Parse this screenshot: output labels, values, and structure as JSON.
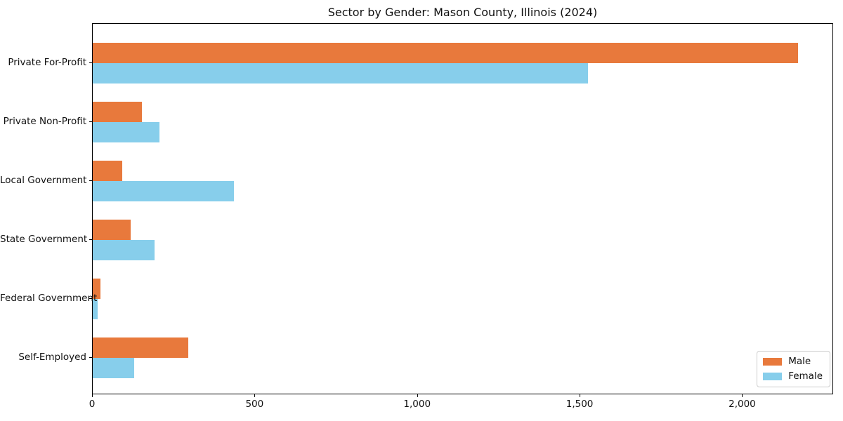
{
  "chart_data": {
    "type": "bar",
    "orientation": "horizontal",
    "title": "Sector by Gender: Mason County, Illinois (2024)",
    "categories": [
      "Private For-Profit",
      "Private Non-Profit",
      "Local Government",
      "State Government",
      "Federal Government",
      "Self-Employed"
    ],
    "series": [
      {
        "name": "Male",
        "color": "#e8793c",
        "values": [
          2170,
          151,
          91,
          116,
          23,
          293
        ]
      },
      {
        "name": "Female",
        "color": "#87ceeb",
        "values": [
          1523,
          206,
          434,
          190,
          16,
          128
        ]
      }
    ],
    "xlabel": "",
    "ylabel": "",
    "xlim": [
      0,
      2280
    ],
    "xticks": [
      0,
      500,
      1000,
      1500,
      2000
    ],
    "xtick_labels": [
      "0",
      "500",
      "1,000",
      "1,500",
      "2,000"
    ],
    "grid": false,
    "legend": {
      "position": "lower right"
    },
    "colors": {
      "background": "#ffffff",
      "spine": "#000000",
      "legend_border": "#cccccc"
    }
  }
}
